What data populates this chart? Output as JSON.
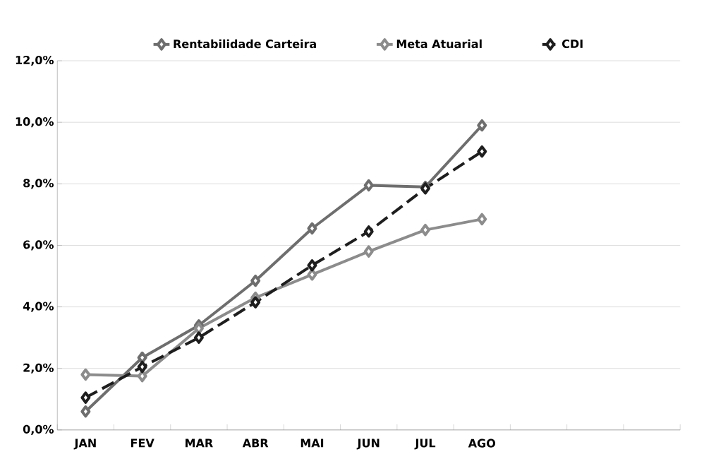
{
  "chart_data": {
    "type": "line",
    "categories": [
      "JAN",
      "FEV",
      "MAR",
      "ABR",
      "MAI",
      "JUN",
      "JUL",
      "AGO",
      null,
      null,
      null
    ],
    "series": [
      {
        "name": "Rentabilidade Carteira",
        "color": "#6e6e6e",
        "values": [
          0.6,
          2.35,
          3.4,
          4.85,
          6.55,
          7.95,
          7.9,
          9.9,
          null,
          null,
          null
        ]
      },
      {
        "name": "Meta Atuarial",
        "color": "#8c8c8c",
        "values": [
          1.8,
          1.75,
          3.3,
          4.3,
          5.05,
          5.8,
          6.5,
          6.85,
          null,
          null,
          null
        ]
      },
      {
        "name": "CDI",
        "color": "#1e1e1e",
        "line_style": "dashed",
        "values": [
          1.05,
          2.05,
          3.0,
          4.15,
          5.35,
          6.45,
          7.85,
          9.05,
          null,
          null,
          null
        ]
      }
    ],
    "ylim": [
      0,
      12
    ],
    "yticks": [
      {
        "value": 0,
        "label": "0,0%"
      },
      {
        "value": 2,
        "label": "2,0%"
      },
      {
        "value": 4,
        "label": "4,0%"
      },
      {
        "value": 6,
        "label": "6,0%"
      },
      {
        "value": 8,
        "label": "8,0%"
      },
      {
        "value": 10,
        "label": "10,0%"
      },
      {
        "value": 12,
        "label": "12,0%"
      }
    ],
    "grid": "y",
    "legend": "top",
    "marker": "diamond"
  }
}
